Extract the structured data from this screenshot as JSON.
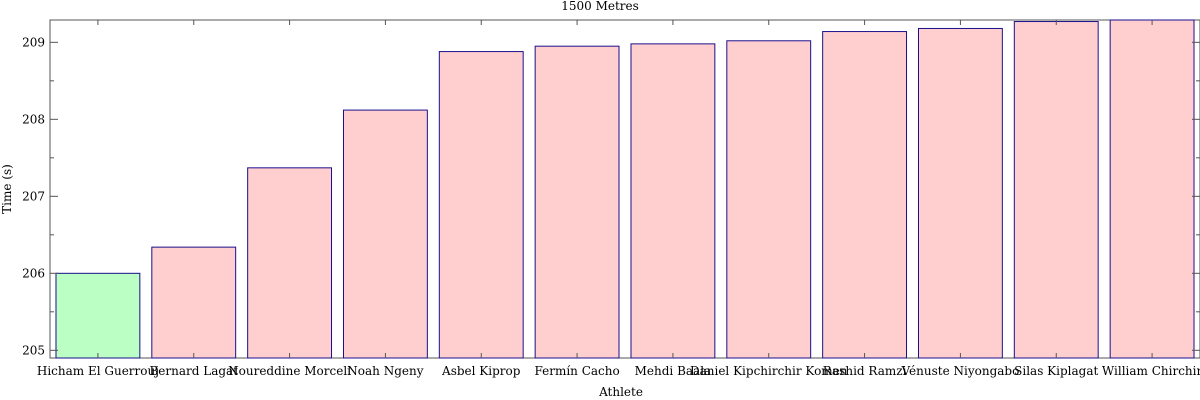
{
  "chart_data": {
    "type": "bar",
    "title": "1500 Metres",
    "xlabel": "Athlete",
    "ylabel": "Time (s)",
    "categories": [
      "Hicham El Guerrouj",
      "Bernard Lagat",
      "Noureddine Morceli",
      "Noah Ngeny",
      "Asbel Kiprop",
      "Fermín Cacho",
      "Mehdi Baala",
      "Daniel Kipchirchir Komen",
      "Rashid Ramzi",
      "Vénuste Niyongabo",
      "Silas Kiplagat",
      "William Chirchir"
    ],
    "values": [
      206.0,
      206.34,
      207.37,
      208.12,
      208.88,
      208.95,
      208.98,
      209.02,
      209.14,
      209.18,
      209.27,
      209.29
    ],
    "highlight_index": 0,
    "ylim": [
      204.9,
      209.29
    ],
    "yticks": [
      205,
      206,
      207,
      208,
      209
    ],
    "grid": false,
    "colors": {
      "highlight_fill": "#bbffc4",
      "bar_fill": "#ffcfcf",
      "bar_stroke": "#1a0f8c",
      "frame": "#555555"
    }
  }
}
